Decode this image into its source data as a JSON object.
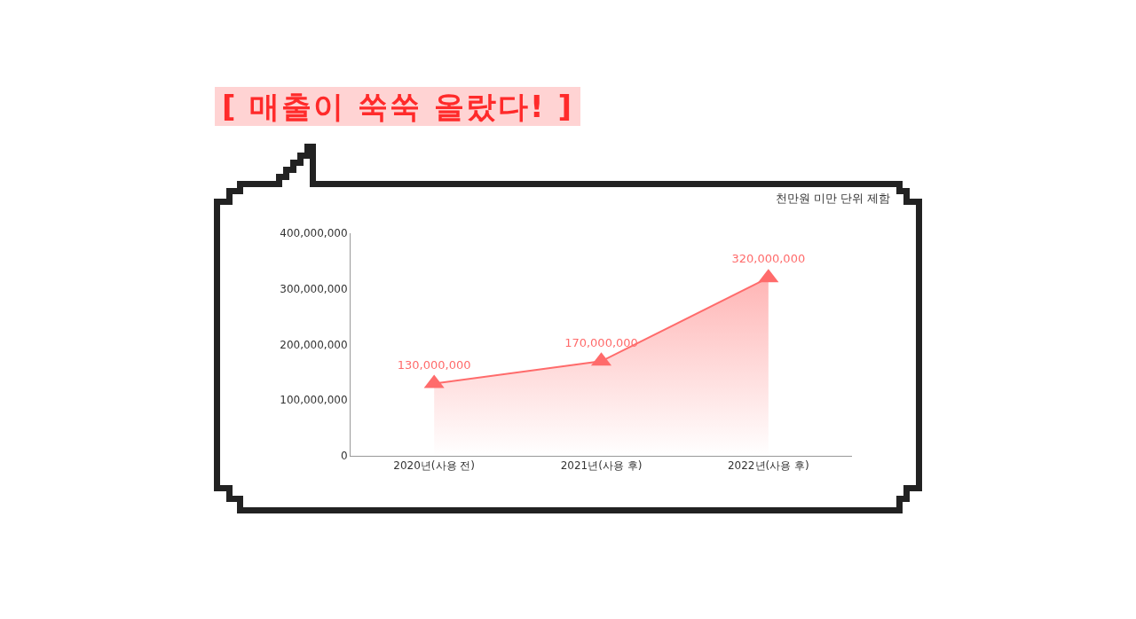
{
  "chart_data": {
    "type": "area",
    "title": "[ 매출이 쑥쑥 올랐다! ]",
    "annotations": [
      "천만원 미만 단위 제함"
    ],
    "categories": [
      "2020년(사용 전)",
      "2021년(사용 후)",
      "2022년(사용 후)"
    ],
    "series": [
      {
        "color": "#ff6b6b",
        "values": [
          130000000,
          170000000,
          320000000
        ],
        "value_labels": [
          "130,000,000",
          "170,000,000",
          "320,000,000"
        ]
      }
    ],
    "ylim": [
      0,
      400000000
    ],
    "yticks": [
      {
        "value": 0,
        "label": "0"
      },
      {
        "value": 100000000,
        "label": "100,000,000"
      },
      {
        "value": 200000000,
        "label": "200,000,000"
      },
      {
        "value": 300000000,
        "label": "300,000,000"
      },
      {
        "value": 400000000,
        "label": "400,000,000"
      }
    ],
    "grid": false,
    "marker": "triangle",
    "line_style": "solid"
  }
}
